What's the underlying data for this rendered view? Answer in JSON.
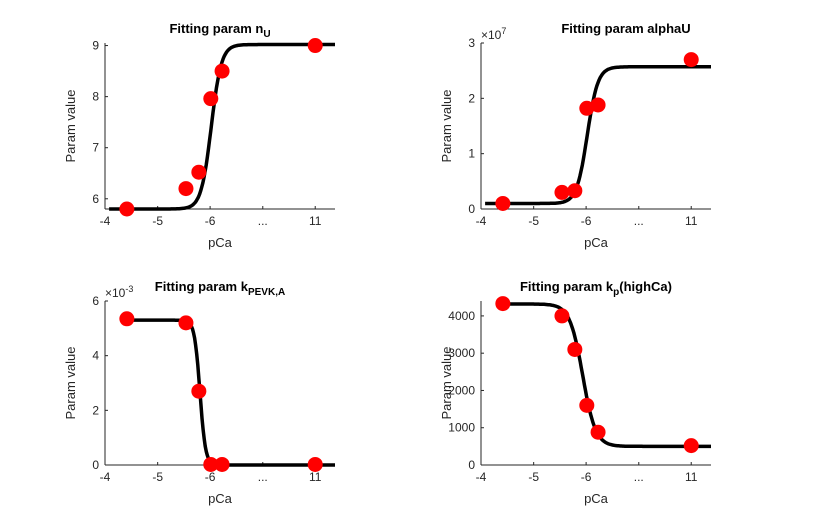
{
  "chart_data": [
    {
      "type": "scatter",
      "title": "Fitting param n",
      "title_subscript": "U",
      "title_suffix": "",
      "xlabel": "pCa",
      "ylabel": "Param value",
      "x_ticks": [
        "-4",
        "-5",
        "-6",
        "...",
        "11"
      ],
      "y_ticks": [
        "6",
        "7",
        "8",
        "9"
      ],
      "y_exponent_base": "",
      "y_exponent_power": "",
      "ylim": [
        5.8,
        9.0
      ],
      "points": [
        {
          "x": "-4.5",
          "y": 5.8
        },
        {
          "x": "-5.5",
          "y": 6.2
        },
        {
          "x": "-5.75",
          "y": 6.52
        },
        {
          "x": "-6",
          "y": 7.96
        },
        {
          "x": "-6.25",
          "y": 8.5
        },
        {
          "x": "11",
          "y": 9.0
        }
      ],
      "fit_curve": {
        "low": 5.8,
        "high": 9.02,
        "direction": "increasing"
      },
      "marker_color": "#ff0000",
      "line_color": "#000000",
      "grid": false
    },
    {
      "type": "scatter",
      "title": "Fitting param alphaU",
      "title_subscript": "",
      "title_suffix": "",
      "xlabel": "pCa",
      "ylabel": "Param value",
      "x_ticks": [
        "-4",
        "-5",
        "-6",
        "...",
        "11"
      ],
      "y_ticks": [
        "0",
        "1",
        "2",
        "3"
      ],
      "y_exponent_base": "×10",
      "y_exponent_power": "7",
      "ylim": [
        0,
        3
      ],
      "points": [
        {
          "x": "-4.5",
          "y": 0.1
        },
        {
          "x": "-5.5",
          "y": 0.3
        },
        {
          "x": "-5.75",
          "y": 0.33
        },
        {
          "x": "-6",
          "y": 1.82
        },
        {
          "x": "-6.25",
          "y": 1.88
        },
        {
          "x": "11",
          "y": 2.7
        }
      ],
      "fit_curve": {
        "low": 0.1,
        "high": 2.57,
        "direction": "increasing"
      },
      "marker_color": "#ff0000",
      "line_color": "#000000",
      "grid": false
    },
    {
      "type": "scatter",
      "title": "Fitting param k",
      "title_subscript": "PEVK,A",
      "title_suffix": "",
      "xlabel": "pCa",
      "ylabel": "Param value",
      "x_ticks": [
        "-4",
        "-5",
        "-6",
        "...",
        "11"
      ],
      "y_ticks": [
        "0",
        "2",
        "4",
        "6"
      ],
      "y_exponent_base": "×10",
      "y_exponent_power": "-3",
      "ylim": [
        0,
        6
      ],
      "points": [
        {
          "x": "-4.5",
          "y": 5.35
        },
        {
          "x": "-5.5",
          "y": 5.2
        },
        {
          "x": "-5.75",
          "y": 2.7
        },
        {
          "x": "-6",
          "y": 0.02
        },
        {
          "x": "-6.25",
          "y": 0.02
        },
        {
          "x": "11",
          "y": 0.02
        }
      ],
      "fit_curve": {
        "low": 0.0,
        "high": 5.3,
        "direction": "decreasing"
      },
      "marker_color": "#ff0000",
      "line_color": "#000000",
      "grid": false
    },
    {
      "type": "scatter",
      "title": "Fitting param k",
      "title_subscript": "p",
      "title_suffix": "(highCa)",
      "xlabel": "pCa",
      "ylabel": "Param value",
      "x_ticks": [
        "-4",
        "-5",
        "-6",
        "...",
        "11"
      ],
      "y_ticks": [
        "0",
        "1000",
        "2000",
        "3000",
        "4000"
      ],
      "y_exponent_base": "",
      "y_exponent_power": "",
      "ylim": [
        0,
        4400
      ],
      "points": [
        {
          "x": "-4.5",
          "y": 4330
        },
        {
          "x": "-5.5",
          "y": 4000
        },
        {
          "x": "-5.75",
          "y": 3100
        },
        {
          "x": "-6",
          "y": 1600
        },
        {
          "x": "-6.25",
          "y": 880
        },
        {
          "x": "11",
          "y": 520
        }
      ],
      "fit_curve": {
        "low": 500,
        "high": 4320,
        "direction": "decreasing"
      },
      "marker_color": "#ff0000",
      "line_color": "#000000",
      "grid": false
    }
  ]
}
